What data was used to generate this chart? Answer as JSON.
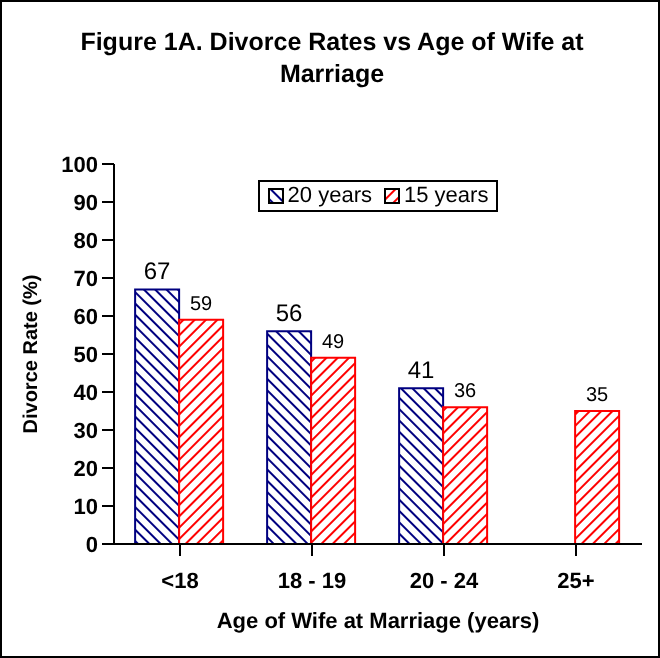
{
  "chart_data": {
    "type": "bar",
    "title": "Figure 1A. Divorce Rates vs Age of Wife at Marriage",
    "xlabel": "Age of Wife at Marriage (years)",
    "ylabel": "Divorce Rate (%)",
    "categories": [
      "<18",
      "18 - 19",
      "20 - 24",
      "25+"
    ],
    "series": [
      {
        "name": "20 years",
        "color": "#000080",
        "values": [
          67,
          56,
          41,
          null
        ]
      },
      {
        "name": "15 years",
        "color": "#ff0000",
        "values": [
          59,
          49,
          36,
          35
        ]
      }
    ],
    "ylim": [
      0,
      100
    ],
    "yticks": [
      0,
      10,
      20,
      30,
      40,
      50,
      60,
      70,
      80,
      90,
      100
    ],
    "data_labels": true,
    "legend": "top"
  }
}
